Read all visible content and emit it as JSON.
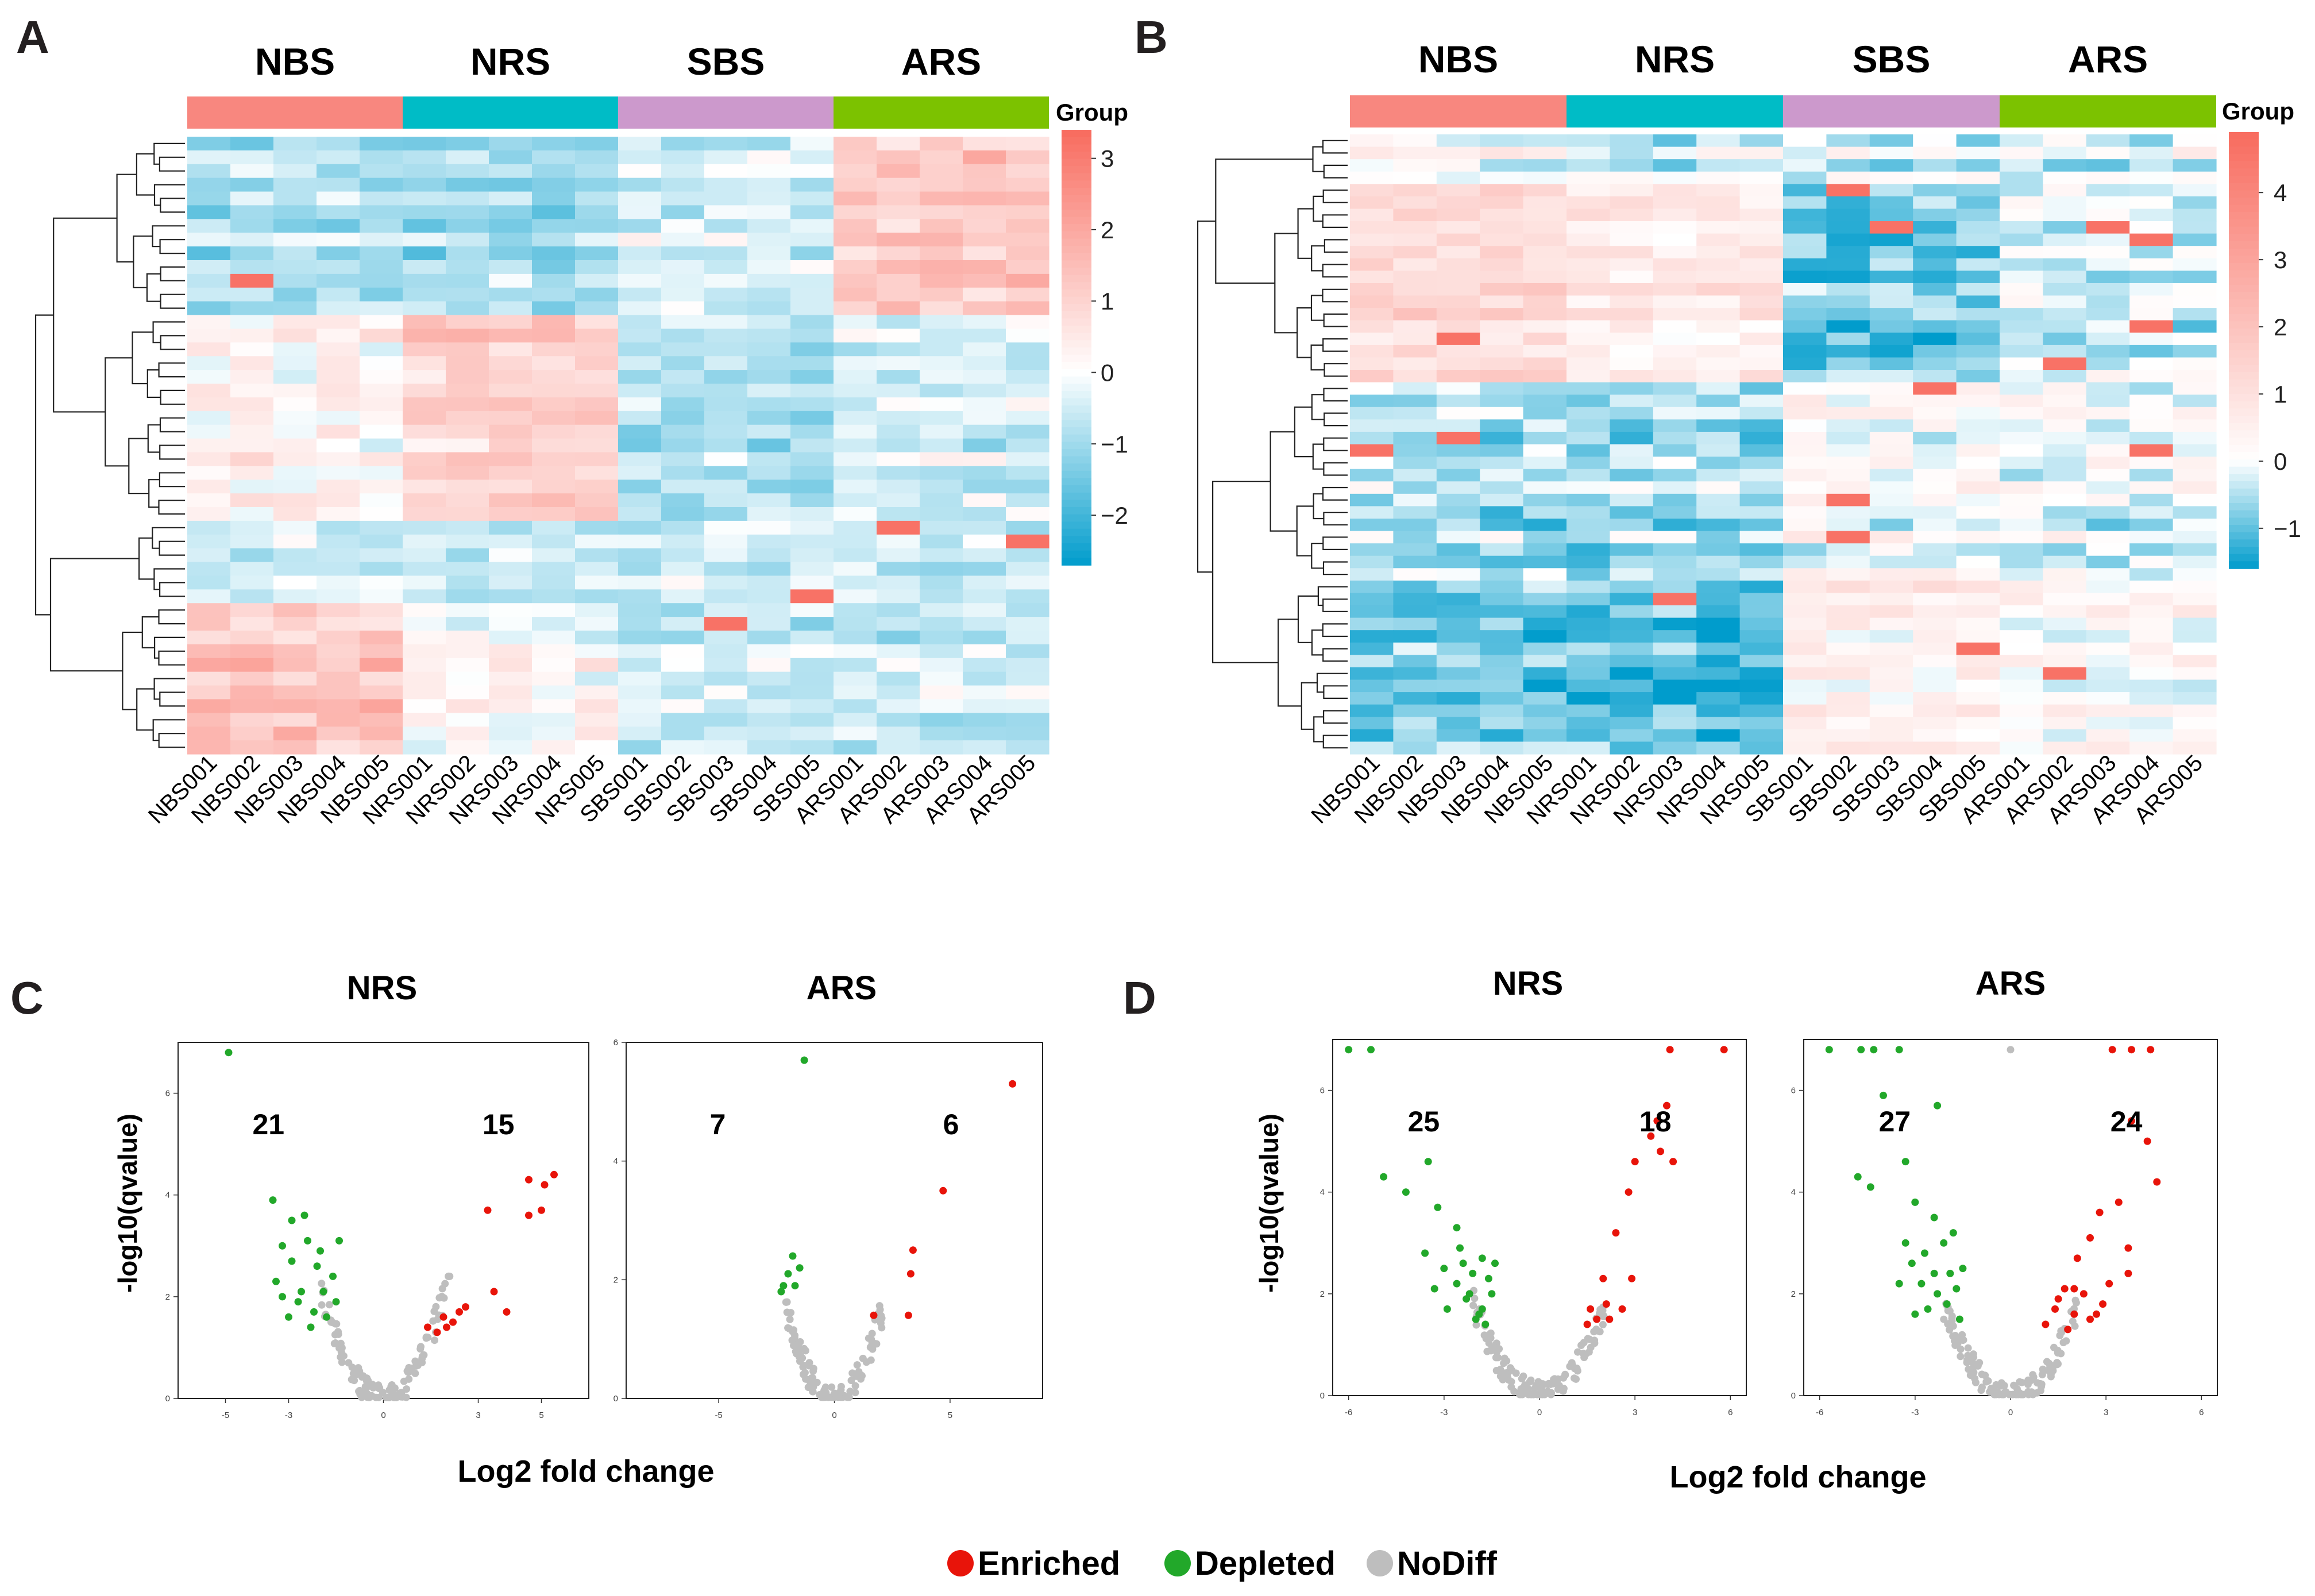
{
  "colors": {
    "NBS": "#F8877F",
    "NRS": "#00BCC6",
    "SBS": "#CC99CC",
    "ARS": "#7CC200",
    "heat_low": "#009CCC",
    "heat_mid": "#FFFFFF",
    "heat_high": "#F86B5E",
    "enriched": "#E8140A",
    "depleted": "#22A82A",
    "nodiff": "#BEBEBE"
  },
  "chart_data": [
    {
      "id": "A",
      "panel_label": "A",
      "type": "heatmap",
      "groups": [
        "NBS",
        "NRS",
        "SBS",
        "ARS"
      ],
      "columns": [
        "NBS001",
        "NBS002",
        "NBS003",
        "NBS004",
        "NBS005",
        "NRS001",
        "NRS002",
        "NRS003",
        "NRS004",
        "NRS005",
        "SBS001",
        "SBS002",
        "SBS003",
        "SBS004",
        "SBS005",
        "ARS001",
        "ARS002",
        "ARS003",
        "ARS004",
        "ARS005"
      ],
      "row_count": 45,
      "legend_title": "Group",
      "scale_min": -2.7,
      "scale_max": 3.4,
      "scale_ticks": [
        3,
        2,
        1,
        0,
        -1,
        -2
      ],
      "scale_tick_labels": [
        "3",
        "2",
        "1",
        "0",
        "−1",
        "−2"
      ],
      "row_blocks": [
        {
          "rows": 13,
          "means": [
            -0.9,
            -1.0,
            -0.4,
            1.2
          ]
        },
        {
          "rows": 15,
          "means": [
            0.2,
            1.0,
            -0.9,
            -0.5
          ]
        },
        {
          "rows": 6,
          "means": [
            -0.3,
            -0.2,
            -0.2,
            -0.3
          ]
        },
        {
          "rows": 11,
          "means": [
            1.3,
            0.0,
            -0.6,
            -0.6
          ]
        }
      ],
      "notes": "Cell values estimated from the colour of each block; 20 samples x 45 features, rows hierarchically clustered."
    },
    {
      "id": "B",
      "panel_label": "B",
      "type": "heatmap",
      "groups": [
        "NBS",
        "NRS",
        "SBS",
        "ARS"
      ],
      "columns": [
        "NBS001",
        "NBS002",
        "NBS003",
        "NBS004",
        "NBS005",
        "NRS001",
        "NRS002",
        "NRS003",
        "NRS004",
        "NRS005",
        "SBS001",
        "SBS002",
        "SBS003",
        "SBS004",
        "SBS005",
        "ARS001",
        "ARS002",
        "ARS003",
        "ARS004",
        "ARS005"
      ],
      "row_count": 50,
      "legend_title": "Group",
      "scale_min": -1.6,
      "scale_max": 4.9,
      "scale_ticks": [
        4,
        3,
        2,
        1,
        0,
        -1
      ],
      "scale_tick_labels": [
        "4",
        "3",
        "2",
        "1",
        "0",
        "−1"
      ],
      "row_blocks": [
        {
          "rows": 4,
          "means": [
            0.1,
            -0.3,
            -0.2,
            -0.1
          ]
        },
        {
          "rows": 16,
          "means": [
            1.2,
            0.6,
            -0.9,
            -0.3
          ]
        },
        {
          "rows": 16,
          "means": [
            -0.6,
            -0.7,
            0.0,
            -0.2
          ]
        },
        {
          "rows": 14,
          "means": [
            -0.9,
            -1.1,
            0.5,
            0.1
          ]
        }
      ],
      "notes": "Cell values estimated from the colour of each block; 20 samples x 50 features, rows hierarchically clustered."
    },
    {
      "id": "C",
      "panel_label": "C",
      "type": "scatter",
      "subplots": [
        {
          "title": "NRS",
          "xlim": [
            -6.5,
            6.5
          ],
          "ylim": [
            0,
            7
          ],
          "xticks": [
            -5,
            -3,
            0,
            3,
            5
          ],
          "yticks": [
            0,
            2,
            4,
            6
          ],
          "count_depleted": "21",
          "count_enriched": "15",
          "depleted": [
            [
              -4.9,
              6.8
            ],
            [
              -3.5,
              3.9
            ],
            [
              -3.2,
              3.0
            ],
            [
              -3.4,
              2.3
            ],
            [
              -2.9,
              2.7
            ],
            [
              -2.6,
              2.1
            ],
            [
              -2.4,
              3.1
            ],
            [
              -2.1,
              2.6
            ],
            [
              -2.7,
              1.9
            ],
            [
              -2.2,
              1.7
            ],
            [
              -1.9,
              2.1
            ],
            [
              -1.6,
              2.4
            ],
            [
              -1.4,
              3.1
            ],
            [
              -2.9,
              3.5
            ],
            [
              -3.0,
              1.6
            ],
            [
              -2.3,
              1.4
            ],
            [
              -1.8,
              1.6
            ],
            [
              -3.2,
              2.0
            ],
            [
              -2.5,
              3.6
            ],
            [
              -2.0,
              2.9
            ],
            [
              -1.5,
              1.9
            ]
          ],
          "enriched": [
            [
              5.4,
              4.4
            ],
            [
              5.1,
              4.2
            ],
            [
              4.6,
              4.3
            ],
            [
              5.0,
              3.7
            ],
            [
              4.6,
              3.6
            ],
            [
              3.3,
              3.7
            ],
            [
              3.5,
              2.1
            ],
            [
              3.9,
              1.7
            ],
            [
              2.4,
              1.7
            ],
            [
              2.2,
              1.5
            ],
            [
              2.0,
              1.4
            ],
            [
              1.7,
              1.3
            ],
            [
              1.4,
              1.4
            ],
            [
              2.6,
              1.8
            ],
            [
              1.9,
              1.6
            ]
          ],
          "nodiff_count": 120,
          "nodiff_curvature": 0.55,
          "nodiff_noise": 0.6
        },
        {
          "title": "ARS",
          "xlim": [
            -9,
            9
          ],
          "ylim": [
            0,
            6
          ],
          "xticks": [
            -5,
            0,
            5
          ],
          "yticks": [
            0,
            2,
            4,
            6
          ],
          "count_depleted": "7",
          "count_enriched": "6",
          "depleted": [
            [
              -1.3,
              5.7
            ],
            [
              -1.8,
              2.4
            ],
            [
              -2.0,
              2.1
            ],
            [
              -1.7,
              1.9
            ],
            [
              -2.2,
              1.9
            ],
            [
              -1.5,
              2.2
            ],
            [
              -2.3,
              1.8
            ]
          ],
          "enriched": [
            [
              7.7,
              5.3
            ],
            [
              4.7,
              3.5
            ],
            [
              3.4,
              2.5
            ],
            [
              3.3,
              2.1
            ],
            [
              3.2,
              1.4
            ],
            [
              1.7,
              1.4
            ]
          ],
          "nodiff_count": 110,
          "nodiff_curvature": 0.35,
          "nodiff_noise": 0.55
        }
      ],
      "xlabel": "Log2 fold change",
      "ylabel": "-log10(qvalue)"
    },
    {
      "id": "D",
      "panel_label": "D",
      "type": "scatter",
      "subplots": [
        {
          "title": "NRS",
          "xlim": [
            -6.5,
            6.5
          ],
          "ylim": [
            0,
            7
          ],
          "xticks": [
            -6,
            -3,
            0,
            3,
            6
          ],
          "yticks": [
            0,
            2,
            4,
            6
          ],
          "count_depleted": "25",
          "count_enriched": "18",
          "depleted": [
            [
              -6.0,
              6.8
            ],
            [
              -5.3,
              6.8
            ],
            [
              -4.9,
              4.3
            ],
            [
              -4.2,
              4.0
            ],
            [
              -3.5,
              4.6
            ],
            [
              -3.6,
              2.8
            ],
            [
              -3.0,
              2.5
            ],
            [
              -2.6,
              2.2
            ],
            [
              -2.4,
              2.6
            ],
            [
              -2.2,
              2.0
            ],
            [
              -2.9,
              1.7
            ],
            [
              -2.0,
              1.5
            ],
            [
              -1.8,
              1.7
            ],
            [
              -1.5,
              2.0
            ],
            [
              -1.4,
              2.6
            ],
            [
              -1.8,
              2.7
            ],
            [
              -2.6,
              3.3
            ],
            [
              -2.1,
              2.4
            ],
            [
              -3.2,
              3.7
            ],
            [
              -1.7,
              1.4
            ],
            [
              -2.3,
              1.9
            ],
            [
              -1.6,
              2.3
            ],
            [
              -2.5,
              2.9
            ],
            [
              -1.9,
              1.6
            ],
            [
              -3.3,
              2.1
            ]
          ],
          "enriched": [
            [
              5.8,
              6.8
            ],
            [
              4.1,
              6.8
            ],
            [
              4.0,
              5.7
            ],
            [
              3.7,
              5.4
            ],
            [
              3.5,
              5.1
            ],
            [
              3.8,
              4.8
            ],
            [
              4.2,
              4.6
            ],
            [
              3.0,
              4.6
            ],
            [
              2.8,
              4.0
            ],
            [
              2.4,
              3.2
            ],
            [
              2.0,
              2.3
            ],
            [
              2.9,
              2.3
            ],
            [
              2.6,
              1.7
            ],
            [
              2.2,
              1.5
            ],
            [
              1.8,
              1.5
            ],
            [
              1.5,
              1.4
            ],
            [
              1.6,
              1.7
            ],
            [
              2.1,
              1.8
            ]
          ],
          "nodiff_count": 130,
          "nodiff_curvature": 0.42,
          "nodiff_noise": 0.55
        },
        {
          "title": "ARS",
          "xlim": [
            -6.5,
            6.5
          ],
          "ylim": [
            0,
            7
          ],
          "xticks": [
            -6,
            -3,
            0,
            3,
            6
          ],
          "yticks": [
            0,
            2,
            4,
            6
          ],
          "count_depleted": "27",
          "count_enriched": "24",
          "depleted": [
            [
              -5.7,
              6.8
            ],
            [
              -4.7,
              6.8
            ],
            [
              -4.3,
              6.8
            ],
            [
              -3.5,
              6.8
            ],
            [
              -4.0,
              5.9
            ],
            [
              -4.8,
              4.3
            ],
            [
              -4.4,
              4.1
            ],
            [
              -2.3,
              5.7
            ],
            [
              -3.3,
              4.6
            ],
            [
              -3.0,
              3.8
            ],
            [
              -3.3,
              3.0
            ],
            [
              -3.1,
              2.6
            ],
            [
              -2.7,
              2.8
            ],
            [
              -2.4,
              2.4
            ],
            [
              -2.1,
              3.0
            ],
            [
              -1.9,
              2.4
            ],
            [
              -2.3,
              2.0
            ],
            [
              -2.0,
              1.8
            ],
            [
              -1.7,
              2.1
            ],
            [
              -1.5,
              2.5
            ],
            [
              -2.6,
              1.7
            ],
            [
              -3.0,
              1.6
            ],
            [
              -1.8,
              3.2
            ],
            [
              -2.4,
              3.5
            ],
            [
              -3.5,
              2.2
            ],
            [
              -1.6,
              1.5
            ],
            [
              -2.8,
              2.2
            ]
          ],
          "enriched": [
            [
              3.2,
              6.8
            ],
            [
              3.8,
              6.8
            ],
            [
              4.4,
              6.8
            ],
            [
              3.8,
              5.4
            ],
            [
              4.3,
              5.0
            ],
            [
              4.6,
              4.2
            ],
            [
              3.4,
              3.8
            ],
            [
              2.8,
              3.6
            ],
            [
              2.5,
              3.1
            ],
            [
              3.7,
              2.9
            ],
            [
              3.7,
              2.4
            ],
            [
              2.1,
              2.7
            ],
            [
              2.3,
              2.0
            ],
            [
              2.9,
              1.8
            ],
            [
              2.7,
              1.6
            ],
            [
              2.0,
              1.6
            ],
            [
              1.7,
              2.1
            ],
            [
              1.4,
              1.7
            ],
            [
              1.1,
              1.4
            ],
            [
              1.8,
              1.3
            ],
            [
              2.5,
              1.5
            ],
            [
              2.0,
              2.1
            ],
            [
              3.1,
              2.2
            ],
            [
              1.5,
              1.9
            ]
          ],
          "nodiff_extra": [
            [
              0.0,
              6.8
            ]
          ],
          "nodiff_count": 130,
          "nodiff_curvature": 0.4,
          "nodiff_noise": 0.55
        }
      ],
      "xlabel": "Log2 fold change",
      "ylabel": "-log10(qvalue)"
    }
  ],
  "legend": {
    "items": [
      {
        "label": "Enriched",
        "color": "#E8140A"
      },
      {
        "label": "Depleted",
        "color": "#22A82A"
      },
      {
        "label": "NoDiff",
        "color": "#BEBEBE"
      }
    ]
  }
}
